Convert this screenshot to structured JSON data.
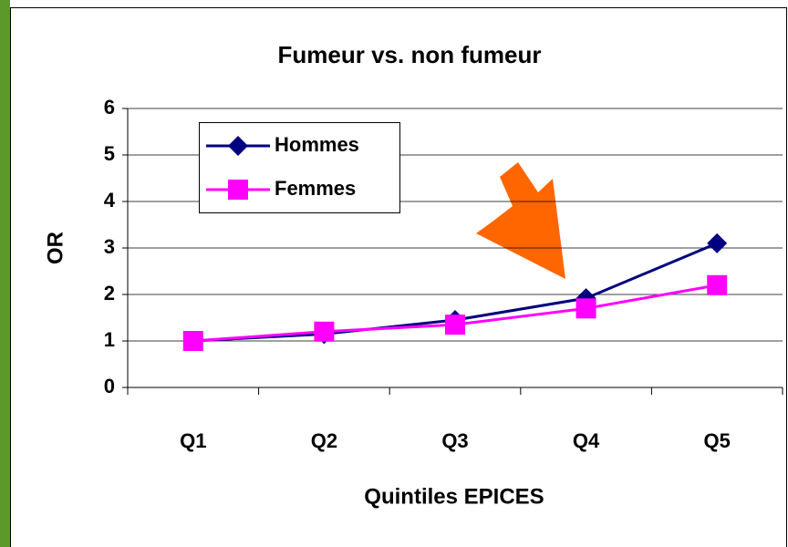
{
  "chart_data": {
    "type": "line",
    "title": "Fumeur vs. non fumeur",
    "x_label": "Quintiles EPICES",
    "y_label": "OR",
    "categories": [
      "Q1",
      "Q2",
      "Q3",
      "Q4",
      "Q5"
    ],
    "series": [
      {
        "name": "Hommes",
        "color": "#000080",
        "marker": "diamond",
        "values": [
          1.0,
          1.15,
          1.45,
          1.92,
          3.1
        ]
      },
      {
        "name": "Femmes",
        "color": "#ff00ff",
        "marker": "square",
        "values": [
          1.0,
          1.2,
          1.35,
          1.7,
          2.2
        ]
      }
    ],
    "ylim": [
      0,
      6
    ],
    "yticks": [
      0,
      1,
      2,
      3,
      4,
      5,
      6
    ],
    "grid": true,
    "legend": "upper left"
  }
}
